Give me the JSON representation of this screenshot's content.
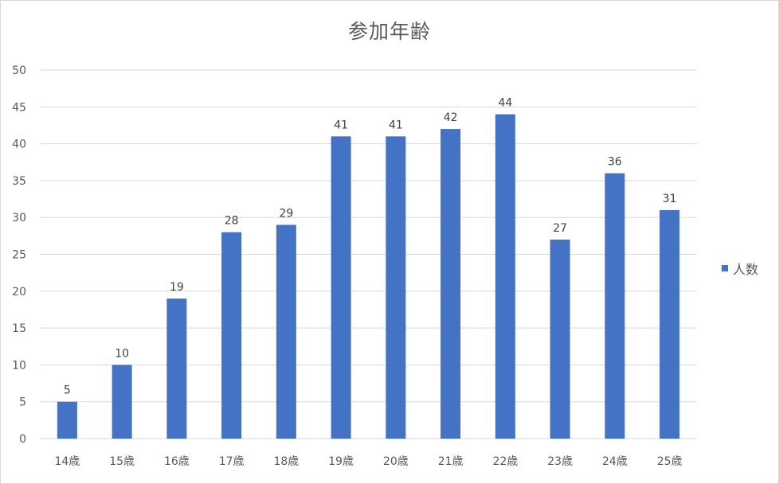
{
  "chart_data": {
    "type": "bar",
    "title": "参加年齢",
    "categories": [
      "14歳",
      "15歳",
      "16歳",
      "17歳",
      "18歳",
      "19歳",
      "20歳",
      "21歳",
      "22歳",
      "23歳",
      "24歳",
      "25歳"
    ],
    "series": [
      {
        "name": "人数",
        "values": [
          5,
          10,
          19,
          28,
          29,
          41,
          41,
          42,
          44,
          27,
          36,
          31
        ],
        "color": "#4472c4"
      }
    ],
    "ylim": [
      0,
      50
    ],
    "yticks": [
      "0",
      "5",
      "10",
      "15",
      "20",
      "25",
      "30",
      "35",
      "40",
      "45",
      "50"
    ],
    "grid": true,
    "legend_position": "right",
    "data_labels": true
  },
  "colors": {
    "bar": "#4472c4",
    "gridline": "#d9d9d9",
    "text": "#595959",
    "label": "#404040"
  }
}
